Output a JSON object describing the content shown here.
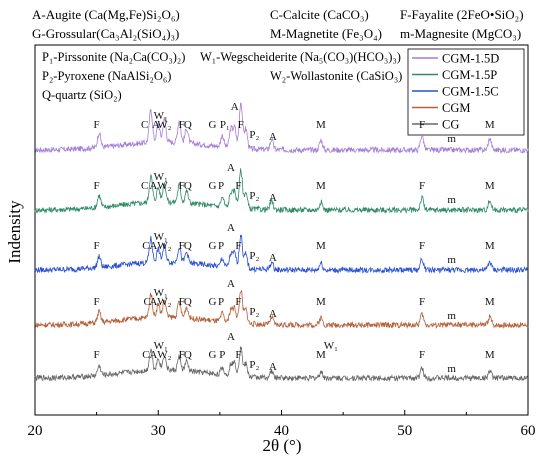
{
  "chart_data": {
    "type": "line",
    "xlabel": "2θ (°)",
    "ylabel": "Indensity",
    "xlim": [
      20,
      60
    ],
    "xticks": [
      20,
      30,
      40,
      50,
      60
    ],
    "phase_legend": [
      "A-Augite (Ca(Mg,Fe)Si₂O₆)",
      "C-Calcite (CaCO₃)",
      "F-Fayalite (2FeO•SiO₂)",
      "G-Grossular(Ca₃Al₂(SiO₄)₃)",
      "M-Magnetite (Fe₃O₄)",
      "m-Magnesite (MgCO₃)",
      "P₁-Pirssonite (Na₂Ca(CO₃)₂)",
      "W₁-Wegscheiderite (Na₅(CO₃)(HCO₃)₃)",
      "P₂-Pyroxene (NaAlSi₂O₆)",
      "W₂-Wollastonite (CaSiO₃)",
      "Q-quartz (SiO₂)"
    ],
    "series": [
      {
        "name": "CGM-1.5D",
        "color": "#a47fd6"
      },
      {
        "name": "CGM-1.5P",
        "color": "#2e8b66"
      },
      {
        "name": "CGM-1.5C",
        "color": "#2a4fd0"
      },
      {
        "name": "CGM",
        "color": "#b5603a"
      },
      {
        "name": "CG",
        "color": "#666666"
      }
    ],
    "peaks": [
      {
        "x": 29.4,
        "h": 1.0
      },
      {
        "x": 30.0,
        "h": 0.55
      },
      {
        "x": 30.5,
        "h": 0.7
      },
      {
        "x": 31.7,
        "h": 0.65
      },
      {
        "x": 32.3,
        "h": 0.45
      },
      {
        "x": 35.2,
        "h": 0.35
      },
      {
        "x": 35.9,
        "h": 0.55
      },
      {
        "x": 36.2,
        "h": 0.6
      },
      {
        "x": 36.7,
        "h": 1.4
      },
      {
        "x": 37.1,
        "h": 0.6
      },
      {
        "x": 39.2,
        "h": 0.3
      },
      {
        "x": 43.2,
        "h": 0.3
      },
      {
        "x": 51.4,
        "h": 0.45
      },
      {
        "x": 56.9,
        "h": 0.35
      },
      {
        "x": 25.2,
        "h": 0.45
      }
    ],
    "peak_labels": [
      {
        "series": 0,
        "items": [
          {
            "t": "F",
            "x": 25.0
          },
          {
            "t": "C",
            "x": 28.9
          },
          {
            "t": "A",
            "x": 29.8
          },
          {
            "t": "W₁",
            "x": 30.2
          },
          {
            "t": "W₂",
            "x": 30.5
          },
          {
            "t": "F",
            "x": 31.9
          },
          {
            "t": "Q",
            "x": 32.4
          },
          {
            "t": "G",
            "x": 34.4
          },
          {
            "t": "P₁",
            "x": 35.4
          },
          {
            "t": "A",
            "x": 36.2
          },
          {
            "t": "F",
            "x": 36.7
          },
          {
            "t": "P₂",
            "x": 37.8
          },
          {
            "t": "A",
            "x": 39.3
          },
          {
            "t": "M",
            "x": 43.2
          },
          {
            "t": "F",
            "x": 51.4
          },
          {
            "t": "m",
            "x": 53.8
          },
          {
            "t": "M",
            "x": 56.9
          }
        ]
      },
      {
        "series": 1,
        "items": [
          {
            "t": "F",
            "x": 25.0
          },
          {
            "t": "C",
            "x": 28.9
          },
          {
            "t": "A",
            "x": 29.6
          },
          {
            "t": "W₁",
            "x": 30.2
          },
          {
            "t": "W₂",
            "x": 30.5
          },
          {
            "t": "F",
            "x": 31.9
          },
          {
            "t": "Q",
            "x": 32.4
          },
          {
            "t": "G",
            "x": 34.4
          },
          {
            "t": "P",
            "x": 35.1
          },
          {
            "t": "A",
            "x": 35.9
          },
          {
            "t": "F",
            "x": 36.5
          },
          {
            "t": "P₂",
            "x": 37.8
          },
          {
            "t": "A",
            "x": 39.3
          },
          {
            "t": "M",
            "x": 43.2
          },
          {
            "t": "F",
            "x": 51.4
          },
          {
            "t": "m",
            "x": 53.8
          },
          {
            "t": "M",
            "x": 56.9
          }
        ]
      },
      {
        "series": 2,
        "items": [
          {
            "t": "F",
            "x": 25.0
          },
          {
            "t": "C",
            "x": 29.0
          },
          {
            "t": "A",
            "x": 29.6
          },
          {
            "t": "W₁",
            "x": 30.2
          },
          {
            "t": "W₂",
            "x": 30.5
          },
          {
            "t": "F",
            "x": 31.9
          },
          {
            "t": "Q",
            "x": 32.4
          },
          {
            "t": "G",
            "x": 34.4
          },
          {
            "t": "P",
            "x": 35.1
          },
          {
            "t": "A",
            "x": 35.9
          },
          {
            "t": "F",
            "x": 36.5
          },
          {
            "t": "P₂",
            "x": 37.8
          },
          {
            "t": "A",
            "x": 39.3
          },
          {
            "t": "M",
            "x": 43.2
          },
          {
            "t": "F",
            "x": 51.4
          },
          {
            "t": "m",
            "x": 53.8
          },
          {
            "t": "M",
            "x": 56.9
          }
        ]
      },
      {
        "series": 3,
        "items": [
          {
            "t": "F",
            "x": 25.0
          },
          {
            "t": "C",
            "x": 29.1
          },
          {
            "t": "A",
            "x": 29.6
          },
          {
            "t": "W₁",
            "x": 30.2
          },
          {
            "t": "W₂",
            "x": 30.5
          },
          {
            "t": "F",
            "x": 31.9
          },
          {
            "t": "Q",
            "x": 32.4
          },
          {
            "t": "G",
            "x": 34.4
          },
          {
            "t": "P",
            "x": 35.1
          },
          {
            "t": "A",
            "x": 35.9
          },
          {
            "t": "F",
            "x": 36.5
          },
          {
            "t": "P₂",
            "x": 37.8
          },
          {
            "t": "A",
            "x": 39.3
          },
          {
            "t": "M",
            "x": 43.2
          },
          {
            "t": "F",
            "x": 51.4
          },
          {
            "t": "m",
            "x": 53.8
          },
          {
            "t": "M",
            "x": 56.9
          }
        ]
      },
      {
        "series": 4,
        "items": [
          {
            "t": "F",
            "x": 25.0
          },
          {
            "t": "C",
            "x": 29.0
          },
          {
            "t": "A",
            "x": 29.6
          },
          {
            "t": "W₁",
            "x": 30.2
          },
          {
            "t": "W₂",
            "x": 30.5
          },
          {
            "t": "F",
            "x": 31.9
          },
          {
            "t": "Q",
            "x": 32.4
          },
          {
            "t": "G",
            "x": 34.4
          },
          {
            "t": "P",
            "x": 35.2
          },
          {
            "t": "A",
            "x": 35.9
          },
          {
            "t": "F",
            "x": 36.5
          },
          {
            "t": "P₂",
            "x": 37.8
          },
          {
            "t": "A",
            "x": 39.3
          },
          {
            "t": "M",
            "x": 43.2
          },
          {
            "t": "W₁",
            "x": 44.0
          },
          {
            "t": "F",
            "x": 51.4
          },
          {
            "t": "m",
            "x": 53.8
          },
          {
            "t": "M",
            "x": 56.9
          }
        ]
      }
    ]
  }
}
